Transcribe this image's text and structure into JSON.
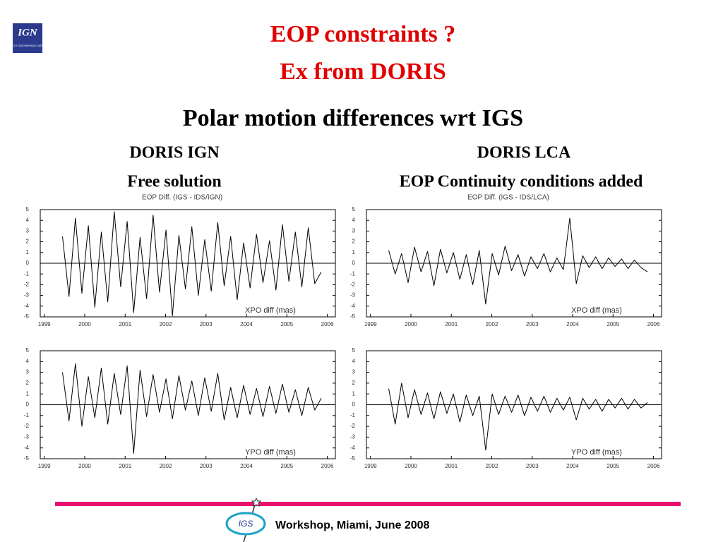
{
  "slide": {
    "logo": {
      "name": "IGN",
      "subtitle": "INSTITUT GEOGRAPHIQUE NATIONAL"
    },
    "title": "EOP constraints ?",
    "title2": "Ex from DORIS",
    "heading": "Polar motion differences wrt IGS",
    "left_label": "DORIS IGN",
    "left_sublabel": "Free solution",
    "right_label": "DORIS LCA",
    "right_sublabel": "EOP Continuity conditions added",
    "footer_logo": "IGS",
    "footer": "Workshop, Miami, June 2008"
  },
  "chart_data": [
    {
      "type": "line",
      "title": "EOP Diff. (IGS - IDS/IGN)",
      "y_label": "XPO diff (mas)",
      "color": "#000000",
      "x": [
        1999.45,
        1999.61,
        1999.77,
        1999.93,
        2000.09,
        2000.25,
        2000.41,
        2000.57,
        2000.73,
        2000.89,
        2001.05,
        2001.21,
        2001.37,
        2001.53,
        2001.69,
        2001.85,
        2002.01,
        2002.17,
        2002.33,
        2002.49,
        2002.65,
        2002.81,
        2002.97,
        2003.13,
        2003.29,
        2003.45,
        2003.61,
        2003.77,
        2003.93,
        2004.09,
        2004.25,
        2004.41,
        2004.57,
        2004.73,
        2004.89,
        2005.05,
        2005.21,
        2005.37,
        2005.53,
        2005.69,
        2005.85
      ],
      "values": [
        2.5,
        -3.1,
        4.2,
        -2.8,
        3.5,
        -4.1,
        2.9,
        -3.6,
        4.8,
        -2.2,
        3.9,
        -4.6,
        2.4,
        -3.3,
        4.5,
        -2.7,
        3.1,
        -4.9,
        2.6,
        -2.4,
        3.4,
        -3.0,
        2.2,
        -2.6,
        3.8,
        -2.1,
        2.5,
        -3.4,
        1.9,
        -2.3,
        2.7,
        -1.8,
        2.1,
        -2.5,
        3.6,
        -1.7,
        2.9,
        -2.2,
        3.3,
        -1.9,
        -0.8
      ],
      "xlim": [
        1998.9,
        2006.2
      ],
      "xticks": [
        1999,
        2000,
        2001,
        2002,
        2003,
        2004,
        2005,
        2006
      ],
      "ylim": [
        -5,
        5
      ],
      "yticks": [
        -5,
        -4,
        -3,
        -2,
        -1,
        0,
        1,
        2,
        3,
        4,
        5
      ]
    },
    {
      "type": "line",
      "y_label": "YPO diff (mas)",
      "color": "#000000",
      "x": [
        1999.45,
        1999.61,
        1999.77,
        1999.93,
        2000.09,
        2000.25,
        2000.41,
        2000.57,
        2000.73,
        2000.89,
        2001.05,
        2001.21,
        2001.37,
        2001.53,
        2001.69,
        2001.85,
        2002.01,
        2002.17,
        2002.33,
        2002.49,
        2002.65,
        2002.81,
        2002.97,
        2003.13,
        2003.29,
        2003.45,
        2003.61,
        2003.77,
        2003.93,
        2004.09,
        2004.25,
        2004.41,
        2004.57,
        2004.73,
        2004.89,
        2005.05,
        2005.21,
        2005.37,
        2005.53,
        2005.69,
        2005.85
      ],
      "values": [
        3.0,
        -1.5,
        3.8,
        -2.0,
        2.6,
        -1.2,
        3.4,
        -1.8,
        2.9,
        -0.9,
        3.6,
        -4.5,
        3.2,
        -1.1,
        2.8,
        -0.7,
        2.4,
        -1.3,
        2.7,
        -0.5,
        2.2,
        -1.0,
        2.5,
        -0.6,
        2.9,
        -1.4,
        1.6,
        -1.2,
        1.8,
        -0.9,
        1.5,
        -1.1,
        1.7,
        -0.8,
        1.9,
        -0.7,
        1.4,
        -1.0,
        1.6,
        -0.5,
        0.6
      ],
      "xlim": [
        1998.9,
        2006.2
      ],
      "xticks": [
        1999,
        2000,
        2001,
        2002,
        2003,
        2004,
        2005,
        2006
      ],
      "ylim": [
        -5,
        5
      ],
      "yticks": [
        -5,
        -4,
        -3,
        -2,
        -1,
        0,
        1,
        2,
        3,
        4,
        5
      ]
    },
    {
      "type": "line",
      "title": "EOP Diff. (IGS - IDS/LCA)",
      "y_label": "XPO diff (mas)",
      "color": "#000000",
      "x": [
        1999.45,
        1999.61,
        1999.77,
        1999.93,
        2000.09,
        2000.25,
        2000.41,
        2000.57,
        2000.73,
        2000.89,
        2001.05,
        2001.21,
        2001.37,
        2001.53,
        2001.69,
        2001.85,
        2002.01,
        2002.17,
        2002.33,
        2002.49,
        2002.65,
        2002.81,
        2002.97,
        2003.13,
        2003.29,
        2003.45,
        2003.61,
        2003.77,
        2003.93,
        2004.09,
        2004.25,
        2004.41,
        2004.57,
        2004.73,
        2004.89,
        2005.05,
        2005.21,
        2005.37,
        2005.53,
        2005.69,
        2005.85
      ],
      "values": [
        1.2,
        -1.0,
        0.9,
        -1.8,
        1.5,
        -0.8,
        1.1,
        -2.1,
        1.3,
        -0.9,
        1.0,
        -1.5,
        0.8,
        -2.0,
        1.2,
        -3.8,
        0.9,
        -1.1,
        1.6,
        -0.7,
        0.8,
        -1.2,
        0.6,
        -0.5,
        0.9,
        -0.8,
        0.5,
        -0.6,
        4.2,
        -1.9,
        0.7,
        -0.4,
        0.6,
        -0.5,
        0.5,
        -0.3,
        0.4,
        -0.5,
        0.3,
        -0.4,
        -0.8
      ],
      "xlim": [
        1998.9,
        2006.2
      ],
      "xticks": [
        1999,
        2000,
        2001,
        2002,
        2003,
        2004,
        2005,
        2006
      ],
      "ylim": [
        -5,
        5
      ],
      "yticks": [
        -5,
        -4,
        -3,
        -2,
        -1,
        0,
        1,
        2,
        3,
        4,
        5
      ]
    },
    {
      "type": "line",
      "y_label": "YPO diff (mas)",
      "color": "#000000",
      "x": [
        1999.45,
        1999.61,
        1999.77,
        1999.93,
        2000.09,
        2000.25,
        2000.41,
        2000.57,
        2000.73,
        2000.89,
        2001.05,
        2001.21,
        2001.37,
        2001.53,
        2001.69,
        2001.85,
        2002.01,
        2002.17,
        2002.33,
        2002.49,
        2002.65,
        2002.81,
        2002.97,
        2003.13,
        2003.29,
        2003.45,
        2003.61,
        2003.77,
        2003.93,
        2004.09,
        2004.25,
        2004.41,
        2004.57,
        2004.73,
        2004.89,
        2005.05,
        2005.21,
        2005.37,
        2005.53,
        2005.69,
        2005.85
      ],
      "values": [
        1.5,
        -1.8,
        2.0,
        -1.2,
        1.4,
        -0.9,
        1.1,
        -1.3,
        1.2,
        -0.8,
        1.0,
        -1.6,
        0.9,
        -1.0,
        0.8,
        -4.2,
        1.0,
        -0.9,
        0.8,
        -0.7,
        0.9,
        -1.0,
        0.7,
        -0.6,
        0.8,
        -0.7,
        0.6,
        -0.5,
        0.7,
        -1.4,
        0.6,
        -0.4,
        0.5,
        -0.6,
        0.5,
        -0.3,
        0.6,
        -0.4,
        0.5,
        -0.3,
        0.2
      ],
      "xlim": [
        1998.9,
        2006.2
      ],
      "xticks": [
        1999,
        2000,
        2001,
        2002,
        2003,
        2004,
        2005,
        2006
      ],
      "ylim": [
        -5,
        5
      ],
      "yticks": [
        -5,
        -4,
        -3,
        -2,
        -1,
        0,
        1,
        2,
        3,
        4,
        5
      ]
    }
  ]
}
